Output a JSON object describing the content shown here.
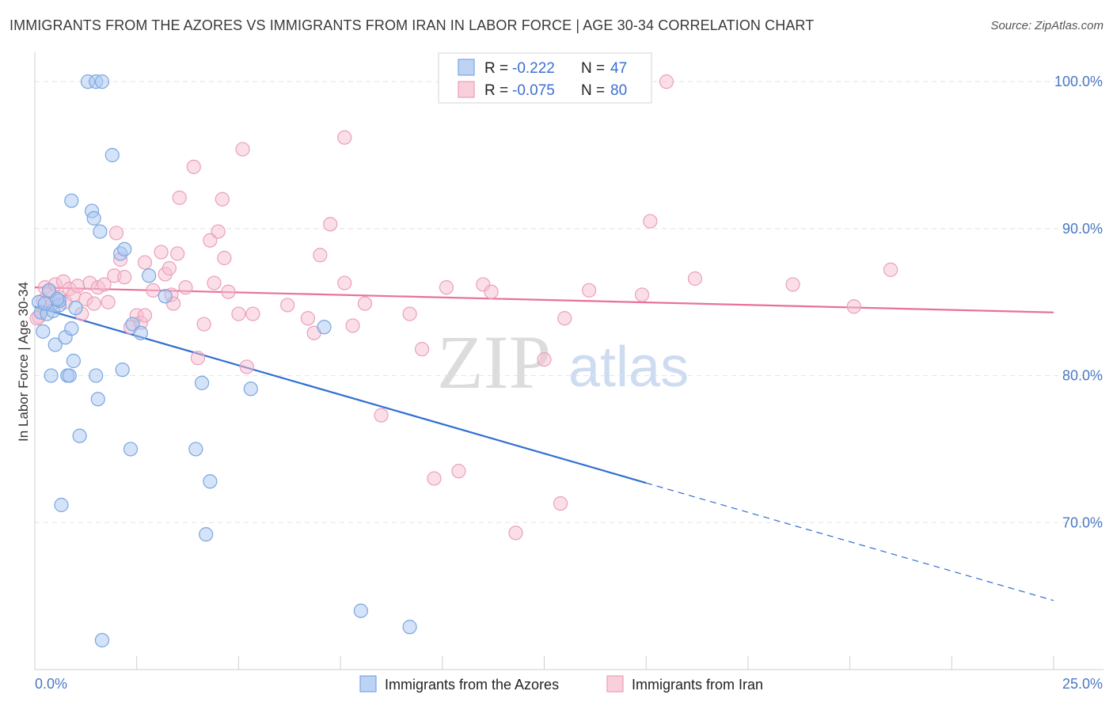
{
  "title": "IMMIGRANTS FROM THE AZORES VS IMMIGRANTS FROM IRAN IN LABOR FORCE | AGE 30-34 CORRELATION CHART",
  "source": "Source: ZipAtlas.com",
  "watermark": {
    "zip": "ZIP",
    "atlas": "atlas"
  },
  "colors": {
    "blue_fill": "#a9c7f2",
    "blue_stroke": "#7aa6e0",
    "blue_line": "#2f6fd0",
    "pink_fill": "#f7bfd1",
    "pink_stroke": "#eaa0b8",
    "pink_line": "#e8719a",
    "tick": "#4a78c2",
    "grid": "#e3e3e3"
  },
  "legend": {
    "rows": [
      {
        "r_label": "R =",
        "r_value": "-0.222",
        "n_label": "N =",
        "n_value": "47"
      },
      {
        "r_label": "R =",
        "r_value": "-0.075",
        "n_label": "N =",
        "n_value": "80"
      }
    ]
  },
  "chart_data": {
    "type": "scatter",
    "title": "IMMIGRANTS FROM THE AZORES VS IMMIGRANTS FROM IRAN IN LABOR FORCE | AGE 30-34 CORRELATION CHART",
    "xlabel": "",
    "ylabel": "In Labor Force | Age 30-34",
    "xlim": [
      0,
      25
    ],
    "ylim": [
      60,
      102
    ],
    "x_tick_labels": [
      "0.0%",
      "25.0%"
    ],
    "y_ticks": [
      70,
      80,
      90,
      100
    ],
    "y_tick_labels": [
      "70.0%",
      "80.0%",
      "90.0%",
      "100.0%"
    ],
    "grid": true,
    "legend_position": "bottom",
    "series": [
      {
        "name": "Immigrants from the Azores",
        "color": "blue",
        "trend": {
          "x_start": 0,
          "y_start": 84.7,
          "x_solid_end": 15,
          "x_end": 25,
          "y_end": 64.7
        },
        "points": [
          [
            0.1,
            85.0
          ],
          [
            0.15,
            84.3
          ],
          [
            0.2,
            83.0
          ],
          [
            0.3,
            84.2
          ],
          [
            0.35,
            85.8
          ],
          [
            0.4,
            80.0
          ],
          [
            0.45,
            84.4
          ],
          [
            0.5,
            82.1
          ],
          [
            0.6,
            84.8
          ],
          [
            0.6,
            85.1
          ],
          [
            0.65,
            71.2
          ],
          [
            0.75,
            82.6
          ],
          [
            0.8,
            80.0
          ],
          [
            0.85,
            80.0
          ],
          [
            0.9,
            83.2
          ],
          [
            0.9,
            91.9
          ],
          [
            0.95,
            81.0
          ],
          [
            1.0,
            84.6
          ],
          [
            1.1,
            75.9
          ],
          [
            1.3,
            100.0
          ],
          [
            1.4,
            91.2
          ],
          [
            1.45,
            90.7
          ],
          [
            1.5,
            100.0
          ],
          [
            1.5,
            80.0
          ],
          [
            1.55,
            78.4
          ],
          [
            1.6,
            89.8
          ],
          [
            1.65,
            100.0
          ],
          [
            1.65,
            62.0
          ],
          [
            1.9,
            95.0
          ],
          [
            2.1,
            88.3
          ],
          [
            2.15,
            80.4
          ],
          [
            2.2,
            88.6
          ],
          [
            2.35,
            75.0
          ],
          [
            2.4,
            83.5
          ],
          [
            2.6,
            82.9
          ],
          [
            2.8,
            86.8
          ],
          [
            3.2,
            85.4
          ],
          [
            3.95,
            75.0
          ],
          [
            4.1,
            79.5
          ],
          [
            4.2,
            69.2
          ],
          [
            4.3,
            72.8
          ],
          [
            5.3,
            79.1
          ],
          [
            7.1,
            83.3
          ],
          [
            8.0,
            64.0
          ],
          [
            9.2,
            62.9
          ],
          [
            0.25,
            84.9
          ],
          [
            0.55,
            85.2
          ]
        ]
      },
      {
        "name": "Immigrants from Iran",
        "color": "pink",
        "trend": {
          "x_start": 0,
          "y_start": 86.0,
          "x_end": 25,
          "y_end": 84.3
        },
        "points": [
          [
            0.1,
            84.0
          ],
          [
            0.2,
            85.1
          ],
          [
            0.25,
            86.0
          ],
          [
            0.35,
            85.7
          ],
          [
            0.45,
            84.9
          ],
          [
            0.5,
            86.2
          ],
          [
            0.6,
            85.3
          ],
          [
            0.7,
            86.4
          ],
          [
            0.75,
            85.0
          ],
          [
            0.85,
            85.9
          ],
          [
            0.95,
            85.5
          ],
          [
            1.05,
            86.1
          ],
          [
            1.15,
            84.2
          ],
          [
            1.25,
            85.2
          ],
          [
            1.35,
            86.3
          ],
          [
            1.45,
            84.9
          ],
          [
            1.55,
            86.0
          ],
          [
            1.7,
            86.2
          ],
          [
            1.8,
            85.0
          ],
          [
            1.95,
            86.8
          ],
          [
            2.0,
            89.7
          ],
          [
            2.1,
            87.9
          ],
          [
            2.2,
            86.7
          ],
          [
            2.35,
            83.3
          ],
          [
            2.5,
            84.1
          ],
          [
            2.6,
            83.6
          ],
          [
            2.7,
            84.1
          ],
          [
            2.7,
            87.7
          ],
          [
            2.9,
            85.8
          ],
          [
            3.1,
            88.4
          ],
          [
            3.2,
            86.9
          ],
          [
            3.3,
            87.3
          ],
          [
            3.35,
            85.5
          ],
          [
            3.4,
            84.9
          ],
          [
            3.5,
            88.3
          ],
          [
            3.55,
            92.1
          ],
          [
            3.7,
            86.0
          ],
          [
            3.9,
            94.2
          ],
          [
            4.0,
            81.2
          ],
          [
            4.15,
            83.5
          ],
          [
            4.3,
            89.2
          ],
          [
            4.4,
            86.3
          ],
          [
            4.5,
            89.8
          ],
          [
            4.6,
            92.0
          ],
          [
            4.65,
            88.0
          ],
          [
            4.75,
            85.7
          ],
          [
            5.0,
            84.2
          ],
          [
            5.1,
            95.4
          ],
          [
            5.2,
            80.6
          ],
          [
            5.35,
            84.2
          ],
          [
            6.2,
            84.8
          ],
          [
            6.7,
            83.9
          ],
          [
            6.85,
            82.9
          ],
          [
            7.0,
            88.2
          ],
          [
            7.25,
            90.3
          ],
          [
            7.6,
            96.2
          ],
          [
            7.6,
            86.3
          ],
          [
            7.8,
            83.4
          ],
          [
            8.1,
            84.9
          ],
          [
            8.5,
            77.3
          ],
          [
            9.2,
            84.2
          ],
          [
            9.5,
            81.8
          ],
          [
            9.8,
            73.0
          ],
          [
            10.1,
            86.0
          ],
          [
            10.4,
            73.5
          ],
          [
            11.0,
            86.2
          ],
          [
            11.2,
            85.7
          ],
          [
            11.8,
            69.3
          ],
          [
            12.5,
            81.1
          ],
          [
            12.9,
            71.3
          ],
          [
            13.0,
            83.9
          ],
          [
            13.6,
            85.8
          ],
          [
            14.9,
            85.5
          ],
          [
            15.1,
            90.5
          ],
          [
            15.5,
            100.0
          ],
          [
            16.2,
            86.6
          ],
          [
            18.6,
            86.2
          ],
          [
            20.1,
            84.7
          ],
          [
            21.0,
            87.2
          ],
          [
            0.05,
            83.9
          ]
        ]
      }
    ]
  }
}
